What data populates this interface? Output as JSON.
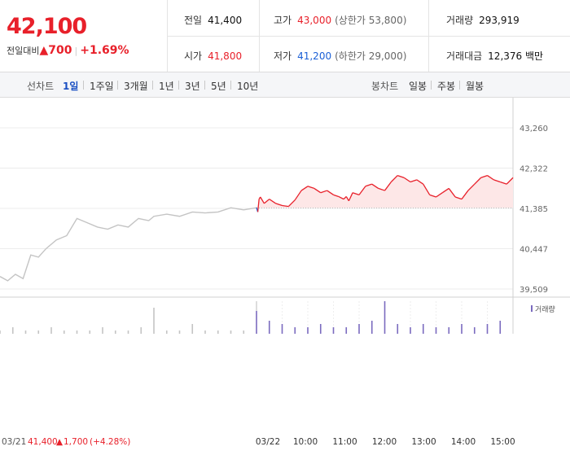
{
  "summary": {
    "price": "42,100",
    "change_label": "전일대비",
    "change_arrow": "▲",
    "change_value": "700",
    "change_pct": "+1.69%"
  },
  "stats": {
    "prev_close_label": "전일",
    "prev_close": "41,400",
    "high_label": "고가",
    "high": "43,000",
    "upper_limit": "(상한가 53,800)",
    "volume_label": "거래량",
    "volume": "293,919",
    "open_label": "시가",
    "open": "41,800",
    "low_label": "저가",
    "low": "41,200",
    "lower_limit": "(하한가 29,000)",
    "amount_label": "거래대금",
    "amount": "12,376 백만"
  },
  "tabs": {
    "line_label": "선차트",
    "line_periods": [
      "1일",
      "1주일",
      "3개월",
      "1년",
      "3년",
      "5년",
      "10년"
    ],
    "active_line": "1일",
    "candle_label": "봉차트",
    "candle_periods": [
      "일봉",
      "주봉",
      "월봉"
    ]
  },
  "footer": {
    "prev_date": "03/21",
    "prev_summary_value": "41,400",
    "prev_summary_arrow": "▲",
    "prev_summary_change": "1,700",
    "prev_summary_pct": "(+4.28%)"
  },
  "colors": {
    "up": "#e8202a",
    "down": "#1a5fd6",
    "prev_day_line": "#c4c4c4",
    "fill": "#fde7e7"
  },
  "chart_data": {
    "type": "line",
    "title": "",
    "y_ticks": [
      "43,260",
      "42,322",
      "41,385",
      "40,447",
      "39,509"
    ],
    "ylim": [
      39509,
      43260
    ],
    "baseline": 41400,
    "x_ticks": [
      "03/22",
      "10:00",
      "11:00",
      "12:00",
      "13:00",
      "14:00",
      "15:00"
    ],
    "volume_legend": "거래량",
    "series": [
      {
        "day": "03/21",
        "x": [
          0.0,
          0.3,
          0.6,
          0.9,
          1.2,
          1.5,
          1.8,
          2.2,
          2.6,
          3.0,
          3.4,
          3.8,
          4.2,
          4.6,
          5.0,
          5.4,
          5.8,
          6.0,
          6.5,
          7.0,
          7.5,
          8.0,
          8.5,
          9.0,
          9.5,
          10.0
        ],
        "values": [
          39800,
          39700,
          39850,
          39750,
          40300,
          40250,
          40450,
          40650,
          40750,
          41150,
          41050,
          40950,
          40900,
          41000,
          40950,
          41150,
          41100,
          41200,
          41250,
          41200,
          41300,
          41280,
          41300,
          41400,
          41350,
          41400
        ]
      },
      {
        "day": "03/22",
        "x": [
          10.0,
          10.05,
          10.1,
          10.15,
          10.3,
          10.5,
          10.75,
          11.0,
          11.25,
          11.5,
          11.75,
          12.0,
          12.25,
          12.5,
          12.75,
          13.0,
          13.2,
          13.4,
          13.5,
          13.6,
          13.75,
          14.0,
          14.25,
          14.5,
          14.75,
          15.0,
          15.25,
          15.5,
          15.75,
          16.0,
          16.25,
          16.5,
          16.75,
          17.0,
          17.25,
          17.5,
          17.75,
          18.0,
          18.25,
          18.5,
          18.75,
          19.0,
          19.25,
          19.5,
          19.75,
          20.0
        ],
        "values": [
          41400,
          41300,
          41600,
          41650,
          41500,
          41600,
          41500,
          41450,
          41430,
          41580,
          41800,
          41900,
          41850,
          41750,
          41800,
          41700,
          41660,
          41600,
          41660,
          41560,
          41750,
          41700,
          41900,
          41950,
          41850,
          41800,
          42000,
          42150,
          42100,
          42000,
          42050,
          41950,
          41700,
          41650,
          41750,
          41850,
          41650,
          41600,
          41800,
          41950,
          42100,
          42150,
          42050,
          42000,
          41950,
          42100
        ]
      }
    ],
    "volume": {
      "day1_x": [
        0,
        0.5,
        1,
        1.5,
        2,
        2.5,
        3,
        3.5,
        4,
        4.5,
        5,
        5.5,
        6,
        6.5,
        7,
        7.5,
        8,
        8.5,
        9,
        9.5
      ],
      "day1_values": [
        1,
        2,
        1,
        1,
        2,
        1,
        1,
        1,
        2,
        1,
        1,
        2,
        8,
        1,
        1,
        3,
        1,
        1,
        1,
        1
      ],
      "day2_x": [
        10,
        10.5,
        11,
        11.5,
        12,
        12.5,
        13,
        13.5,
        14,
        14.5,
        15,
        15.5,
        16,
        16.5,
        17,
        17.5,
        18,
        18.5,
        19,
        19.5
      ],
      "day2_values": [
        7,
        4,
        3,
        2,
        2,
        3,
        2,
        2,
        3,
        4,
        10,
        3,
        2,
        3,
        2,
        2,
        3,
        2,
        3,
        4
      ]
    }
  }
}
